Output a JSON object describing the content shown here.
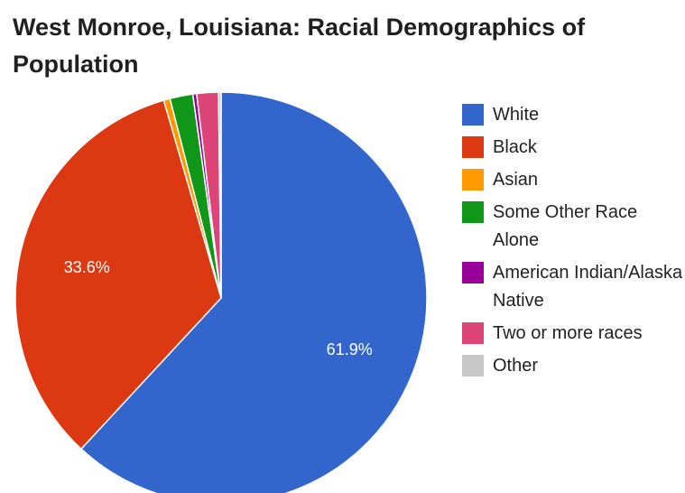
{
  "chart_data": {
    "type": "pie",
    "title": "West Monroe, Louisiana: Racial Demographics of Population",
    "legend_position": "right",
    "categories": [
      "White",
      "Black",
      "Asian",
      "Some Other Race Alone",
      "American Indian/Alaska Native",
      "Two or more races",
      "Other"
    ],
    "values": [
      61.9,
      33.6,
      0.5,
      1.8,
      0.3,
      1.7,
      0.2
    ],
    "colors": [
      "#3366cc",
      "#dc3912",
      "#ff9900",
      "#109618",
      "#990099",
      "#dd4477",
      "#c8c8c8"
    ],
    "data_labels": [
      {
        "category": "White",
        "text": "61.9%"
      },
      {
        "category": "Black",
        "text": "33.6%"
      }
    ]
  }
}
